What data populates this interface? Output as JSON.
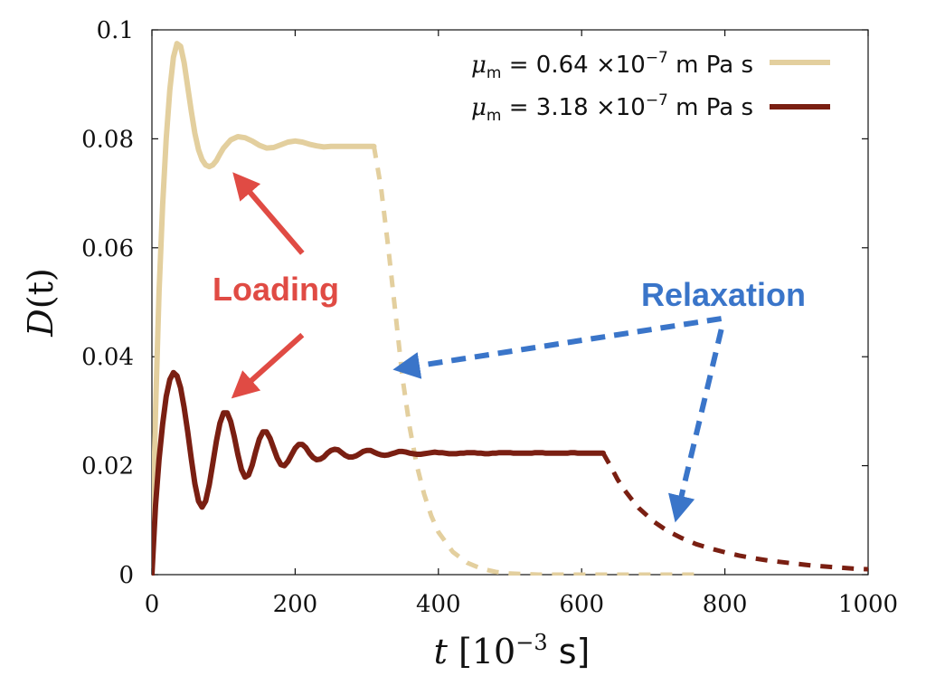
{
  "chart_data": {
    "type": "line",
    "title": "",
    "xlabel": {
      "italic": "t",
      "prefix": " [10",
      "exp": "−3",
      "suffix": " s]"
    },
    "ylabel": {
      "italic": "D",
      "rest": "(t)"
    },
    "xlim": [
      0,
      1000
    ],
    "ylim": [
      0,
      0.1
    ],
    "x_ticks": [
      0,
      200,
      400,
      600,
      800,
      1000
    ],
    "x_tick_labels": [
      "0",
      "200",
      "400",
      "600",
      "800",
      "1000"
    ],
    "y_ticks": [
      0,
      0.02,
      0.04,
      0.06,
      0.08,
      0.1
    ],
    "y_tick_labels": [
      "0",
      "0.02",
      "0.04",
      "0.06",
      "0.08",
      "0.1"
    ],
    "grid": false,
    "legend_position": "top-right",
    "series": [
      {
        "name": "μm = 0.64 ×10−7 m Pa s",
        "legend": {
          "mu": "μ",
          "sub": "m",
          "mid": " = 0.64 ×10",
          "exp": "−7",
          "unit": " m Pa s"
        },
        "color": "#e3cf9e",
        "loading": {
          "x": [
            0,
            5,
            10,
            15,
            20,
            25,
            30,
            35,
            40,
            45,
            50,
            55,
            60,
            65,
            70,
            75,
            80,
            85,
            90,
            95,
            100,
            110,
            120,
            130,
            140,
            150,
            160,
            170,
            180,
            190,
            200,
            210,
            220,
            230,
            240,
            250,
            260,
            270,
            280,
            290,
            300,
            310
          ],
          "y": [
            0,
            0.03,
            0.052,
            0.068,
            0.08,
            0.089,
            0.095,
            0.0975,
            0.097,
            0.094,
            0.0895,
            0.085,
            0.081,
            0.078,
            0.0762,
            0.0752,
            0.0749,
            0.0752,
            0.076,
            0.0772,
            0.0783,
            0.0798,
            0.0804,
            0.0802,
            0.0796,
            0.0788,
            0.0783,
            0.0784,
            0.0789,
            0.0794,
            0.0796,
            0.0794,
            0.079,
            0.0787,
            0.0785,
            0.0786,
            0.0786,
            0.0786,
            0.0786,
            0.0786,
            0.0786,
            0.0786
          ]
        },
        "relaxation": {
          "x": [
            310,
            320,
            330,
            340,
            350,
            360,
            370,
            380,
            390,
            400,
            420,
            440,
            460,
            480,
            500,
            520,
            540,
            560,
            600,
            650,
            700,
            760
          ],
          "y": [
            0.0786,
            0.071,
            0.06,
            0.048,
            0.036,
            0.027,
            0.02,
            0.0148,
            0.0108,
            0.0078,
            0.0042,
            0.0022,
            0.0011,
            0.0005,
            0.0002,
            0.0001,
            0,
            0,
            0,
            0,
            0,
            0
          ]
        }
      },
      {
        "name": "μm = 3.18 ×10−7 m Pa s",
        "legend": {
          "mu": "μ",
          "sub": "m",
          "mid": " = 3.18 ×10",
          "exp": "−7",
          "unit": " m Pa s"
        },
        "color": "#7a1f12",
        "loading": {
          "x": [
            0,
            5,
            10,
            15,
            20,
            25,
            30,
            35,
            40,
            45,
            50,
            55,
            60,
            65,
            70,
            75,
            80,
            85,
            90,
            95,
            100,
            105,
            110,
            115,
            120,
            125,
            130,
            135,
            140,
            145,
            150,
            155,
            160,
            165,
            170,
            175,
            180,
            185,
            190,
            195,
            200,
            205,
            210,
            215,
            220,
            225,
            230,
            235,
            240,
            245,
            250,
            255,
            260,
            265,
            270,
            275,
            280,
            285,
            290,
            295,
            300,
            305,
            310,
            315,
            320,
            325,
            330,
            335,
            340,
            345,
            350,
            355,
            360,
            365,
            370,
            375,
            380,
            385,
            390,
            395,
            400,
            405,
            410,
            415,
            420,
            425,
            430,
            435,
            440,
            445,
            450,
            455,
            460,
            465,
            470,
            475,
            480,
            485,
            490,
            495,
            500,
            505,
            510,
            515,
            520,
            525,
            530,
            535,
            540,
            545,
            550,
            555,
            560,
            565,
            570,
            575,
            580,
            585,
            590,
            595,
            600,
            605,
            610,
            615,
            620,
            625,
            630
          ],
          "y": [
            0,
            0.0127,
            0.0212,
            0.0277,
            0.0327,
            0.0358,
            0.0371,
            0.0365,
            0.0343,
            0.0307,
            0.0262,
            0.0212,
            0.0167,
            0.0135,
            0.0124,
            0.0135,
            0.0165,
            0.0204,
            0.0245,
            0.0278,
            0.0297,
            0.0297,
            0.0281,
            0.0253,
            0.0221,
            0.0193,
            0.0179,
            0.0183,
            0.0201,
            0.0226,
            0.0249,
            0.0262,
            0.0262,
            0.025,
            0.0232,
            0.0214,
            0.0202,
            0.02,
            0.0208,
            0.022,
            0.0232,
            0.0239,
            0.0239,
            0.0233,
            0.0223,
            0.0215,
            0.0211,
            0.0212,
            0.0216,
            0.0223,
            0.0228,
            0.023,
            0.0229,
            0.0224,
            0.0219,
            0.0216,
            0.0216,
            0.0218,
            0.0222,
            0.0226,
            0.0228,
            0.0228,
            0.0225,
            0.0222,
            0.022,
            0.0219,
            0.022,
            0.0222,
            0.0224,
            0.0226,
            0.0226,
            0.0225,
            0.0223,
            0.0222,
            0.0221,
            0.0221,
            0.0222,
            0.0223,
            0.0224,
            0.0225,
            0.0224,
            0.0224,
            0.0223,
            0.0222,
            0.0222,
            0.0222,
            0.0223,
            0.0223,
            0.0224,
            0.0224,
            0.0224,
            0.0223,
            0.0223,
            0.0222,
            0.0222,
            0.0223,
            0.0223,
            0.0224,
            0.0224,
            0.0224,
            0.0224,
            0.0223,
            0.0223,
            0.0223,
            0.0223,
            0.0223,
            0.0223,
            0.0224,
            0.0224,
            0.0224,
            0.0223,
            0.0223,
            0.0223,
            0.0223,
            0.0223,
            0.0223,
            0.0223,
            0.0224,
            0.0224,
            0.0223,
            0.0223,
            0.0223,
            0.0223,
            0.0223,
            0.0223,
            0.0223,
            0.0223
          ]
        },
        "relaxation": {
          "x": [
            630,
            640,
            650,
            660,
            670,
            680,
            700,
            720,
            740,
            760,
            780,
            800,
            820,
            840,
            860,
            880,
            900,
            920,
            940,
            960,
            980,
            1000
          ],
          "y": [
            0.0223,
            0.02,
            0.0175,
            0.0155,
            0.0138,
            0.0122,
            0.0098,
            0.008,
            0.0067,
            0.0056,
            0.0048,
            0.0041,
            0.0035,
            0.003,
            0.0026,
            0.0023,
            0.002,
            0.0017,
            0.0015,
            0.0013,
            0.0011,
            0.001
          ]
        }
      }
    ],
    "annotations": [
      {
        "text": "Loading",
        "color": "#e04b44",
        "arrow_style": "solid",
        "arrows": [
          {
            "from": [
              210,
              0.059
            ],
            "to": [
              125,
              0.072
            ]
          },
          {
            "from": [
              210,
              0.044
            ],
            "to": [
              125,
              0.034
            ]
          }
        ]
      },
      {
        "text": "Relaxation",
        "color": "#3a75c9",
        "arrow_style": "dashed",
        "arrows": [
          {
            "from": [
              795,
              0.047
            ],
            "to": [
              355,
              0.038
            ]
          },
          {
            "from": [
              795,
              0.045
            ],
            "to": [
              735,
              0.012
            ]
          }
        ]
      }
    ]
  }
}
